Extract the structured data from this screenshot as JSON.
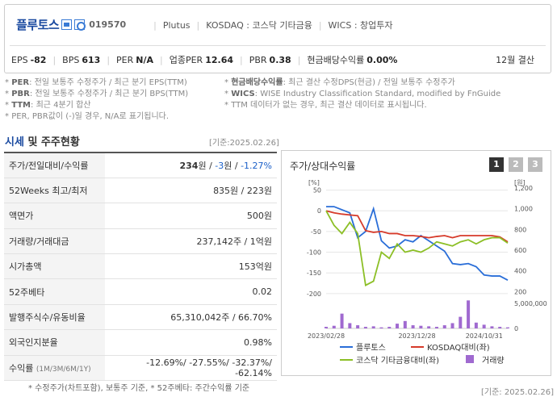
{
  "header": {
    "corp_name": "플루토스",
    "code": "019570",
    "eng_name": "Plutus",
    "market": "KOSDAQ : 코스닥 기타금융",
    "wics": "WICS : 창업투자"
  },
  "stats": {
    "eps_label": "EPS",
    "eps": "-82",
    "bps_label": "BPS",
    "bps": "613",
    "per_label": "PER",
    "per": "N/A",
    "sector_per_label": "업종PER",
    "sector_per": "12.64",
    "pbr_label": "PBR",
    "pbr": "0.38",
    "div_label": "현금배당수익률",
    "div": "0.00%",
    "closing": "12월 결산"
  },
  "notes": {
    "per_key": "PER",
    "per_text": ": 전일 보통주 수정주가 / 최근 분기 EPS(TTM)",
    "pbr_key": "PBR",
    "pbr_text": ": 전일 보통주 수정주가 / 최근 분기 BPS(TTM)",
    "ttm_key": "TTM",
    "ttm_text": ": 최근 4분기 합산",
    "neg_text": "PER, PBR값이 (-)일 경우, N/A로 표기됩니다.",
    "div_key": "현금배당수익률",
    "div_text": ": 최근 결산 수정DPS(현금) / 전일 보통주 수정주가",
    "wics_key": "WICS",
    "wics_text": ": WISE Industry Classification Standard, modified by FnGuide",
    "ttm2_text": "TTM 데이터가 없는 경우, 최근 결산 데이터로 표시됩니다."
  },
  "section": {
    "title_blue": "시세",
    "title_rest": " 및 주주현황",
    "date_ref": "[기준:2025.02.26]"
  },
  "rows": {
    "r1_label": "주가/전일대비/수익률",
    "r1_price": "234",
    "r1_unit": "원",
    "r1_sep1": " / ",
    "r1_change": "-3",
    "r1_unit2": "원",
    "r1_sep2": " / ",
    "r1_rate": "-1.27%",
    "r2_label": "52Weeks 최고/최저",
    "r2_val": "835원 / 223원",
    "r3_label": "액면가",
    "r3_val": "500원",
    "r4_label": "거래량/거래대금",
    "r4_val": "237,142주 / 1억원",
    "r5_label": "시가총액",
    "r5_val": "153억원",
    "r6_label": "52주베타",
    "r6_val": "0.02",
    "r7_label": "발행주식수/유동비율",
    "r7_val": "65,310,042주 / 66.70%",
    "r8_label": "외국인지분율",
    "r8_val": "0.98%",
    "r9_label": "수익률",
    "r9_sub": "(1M/3M/6M/1Y)",
    "r9_val": "-12.69%/ -27.55%/ -32.37%/ -62.14%"
  },
  "footnote": "* 수정주가(차트포함), 보통주 기준, * 52주베타: 주간수익률 기준",
  "chart_box": {
    "title": "주가/상대수익률",
    "tabs": [
      "1",
      "2",
      "3"
    ],
    "date_ref": "[기준: 2025.02.26]"
  },
  "chart_data": {
    "type": "line",
    "left_unit": "[%]",
    "right_unit": "[원]",
    "left_ticks": [
      "50",
      "0",
      "-50",
      "-100",
      "-150",
      "-200"
    ],
    "right_ticks": [
      "1,200",
      "1,000",
      "800",
      "600",
      "400",
      "200"
    ],
    "volume_tick": "5,000,000",
    "volume_zero": "0",
    "x_ticks": [
      "2023/02/28",
      "2023/12/28",
      "2024/10/31"
    ],
    "ylim_left": [
      -210,
      55
    ],
    "ylim_right": [
      140,
      1200
    ],
    "series": [
      {
        "name": "플루토스",
        "color": "#2a6ed8",
        "axis": "right",
        "values": [
          1020,
          1020,
          990,
          960,
          720,
          780,
          1000,
          690,
          620,
          640,
          700,
          680,
          740,
          690,
          640,
          590,
          470,
          460,
          470,
          440,
          360,
          350,
          350,
          310
        ]
      },
      {
        "name": "KOSDAQ대비(좌)",
        "color": "#d63a2a",
        "axis": "left",
        "values": [
          0,
          -5,
          -8,
          -10,
          -12,
          -48,
          -52,
          -50,
          -55,
          -55,
          -60,
          -60,
          -62,
          -65,
          -62,
          -60,
          -65,
          -60,
          -60,
          -60,
          -60,
          -60,
          -63,
          -75
        ]
      },
      {
        "name": "코스닥 기타금융대비(좌)",
        "color": "#8cbf26",
        "axis": "left",
        "values": [
          0,
          -35,
          -55,
          -28,
          -55,
          -180,
          -170,
          -100,
          -115,
          -80,
          -100,
          -95,
          -100,
          -90,
          -75,
          -80,
          -85,
          -75,
          -70,
          -80,
          -70,
          -65,
          -65,
          -78
        ]
      }
    ],
    "volume": {
      "name": "거래량",
      "color": "#a06ad0",
      "values": [
        0.3,
        0.5,
        2.8,
        1.0,
        0.6,
        0.3,
        0.4,
        0.2,
        0.3,
        0.9,
        1.4,
        0.6,
        0.5,
        0.4,
        0.3,
        0.6,
        1.0,
        2.2,
        5.3,
        1.1,
        0.7,
        0.4,
        0.3,
        0.2
      ]
    }
  }
}
